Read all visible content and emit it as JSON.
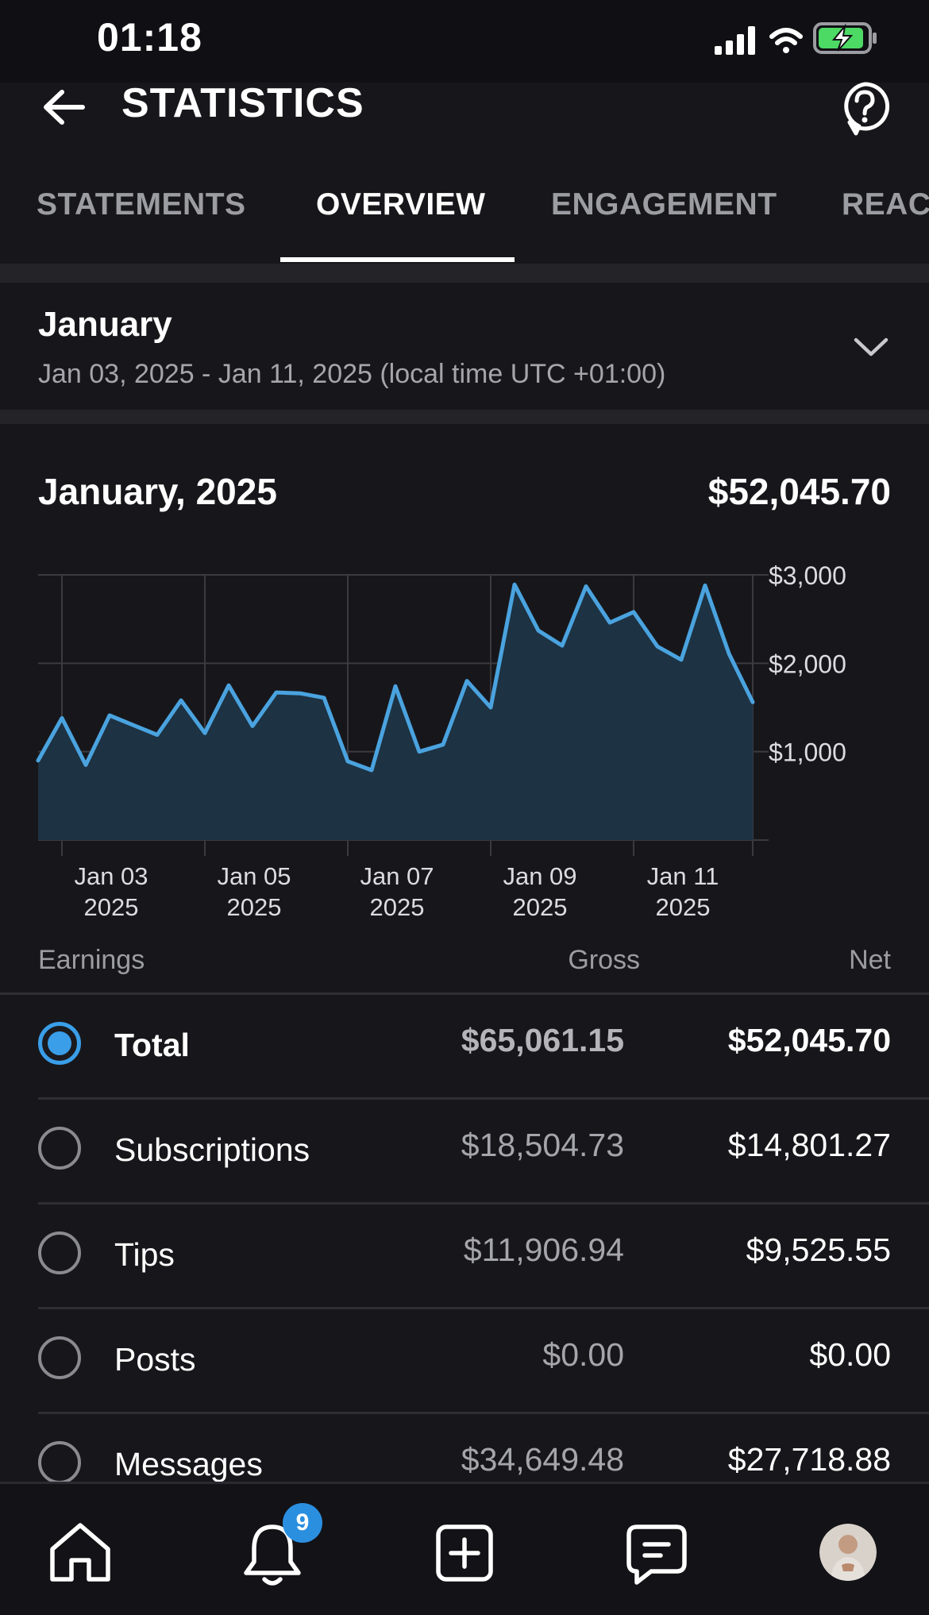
{
  "status_bar": {
    "time": "01:18"
  },
  "header": {
    "title": "STATISTICS"
  },
  "tabs": [
    {
      "label": "STATEMENTS"
    },
    {
      "label": "OVERVIEW",
      "active": true
    },
    {
      "label": "ENGAGEMENT"
    },
    {
      "label": "REACH"
    }
  ],
  "period": {
    "title": "January",
    "range": "Jan 03, 2025 - Jan 11, 2025 (local time UTC +01:00)"
  },
  "summary": {
    "title": "January, 2025",
    "total": "$52,045.70"
  },
  "chart_data": {
    "type": "area",
    "x_tick_labels": [
      [
        "Jan 03",
        "2025"
      ],
      [
        "Jan 05",
        "2025"
      ],
      [
        "Jan 07",
        "2025"
      ],
      [
        "Jan 09",
        "2025"
      ],
      [
        "Jan 11",
        "2025"
      ]
    ],
    "y_tick_labels": [
      "$3,000",
      "$2,000",
      "$1,000"
    ],
    "y_ticks": [
      3000,
      2000,
      1000
    ],
    "ylim": [
      0,
      3000
    ],
    "xlim": [
      0,
      30
    ],
    "values": [
      900,
      1380,
      850,
      1410,
      1300,
      1190,
      1580,
      1210,
      1750,
      1290,
      1670,
      1660,
      1610,
      890,
      790,
      1740,
      1000,
      1080,
      1800,
      1500,
      2890,
      2370,
      2200,
      2870,
      2460,
      2580,
      2190,
      2040,
      2880,
      2110,
      1560
    ],
    "x_tick_positions": [
      1,
      7,
      13,
      19,
      25
    ],
    "line_color": "#4aa3df",
    "fill_color": "#1d3242",
    "grid": true
  },
  "earnings": {
    "header": {
      "label": "Earnings",
      "gross": "Gross",
      "net": "Net"
    },
    "rows": [
      {
        "label": "Total",
        "gross": "$65,061.15",
        "net": "$52,045.70",
        "selected": true
      },
      {
        "label": "Subscriptions",
        "gross": "$18,504.73",
        "net": "$14,801.27"
      },
      {
        "label": "Tips",
        "gross": "$11,906.94",
        "net": "$9,525.55"
      },
      {
        "label": "Posts",
        "gross": "$0.00",
        "net": "$0.00"
      },
      {
        "label": "Messages",
        "gross": "$34,649.48",
        "net": "$27,718.88"
      }
    ]
  },
  "bottom_nav": {
    "notifications_badge": "9"
  },
  "colors": {
    "accent": "#3a9ee8",
    "background": "#17171b"
  }
}
